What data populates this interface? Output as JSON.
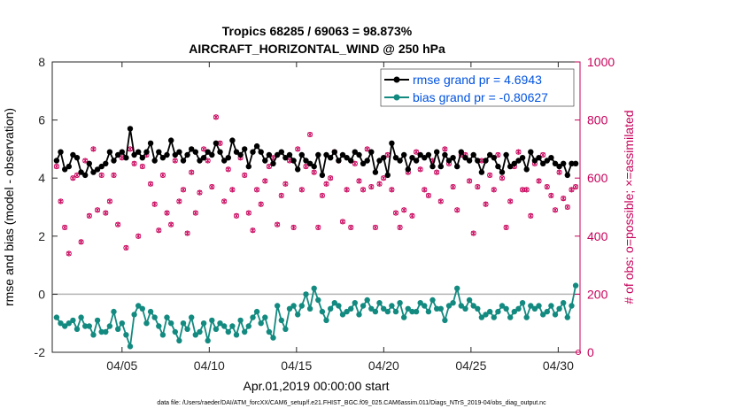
{
  "chart_data": {
    "type": "line",
    "title_line1": "Tropics 68285 / 69063 = 98.873%",
    "title_line2": "AIRCRAFT_HORIZONTAL_WIND @ 250 hPa",
    "xlabel": "Apr.01,2019 00:00:00 start",
    "ylabel_left": "rmse and bias (model - observation)",
    "ylabel_right": "# of obs: o=possible; ×=assimilated",
    "footnote": "data file: /Users/raeder/DAI/ATM_forcXX/CAM6_setup/f.e21.FHIST_BGC.f09_025.CAM6assim.011/Diags_NTrS_2019-04/obs_diag_output.nc",
    "x_range": [
      1,
      31.25
    ],
    "ylim_left": [
      -2,
      8
    ],
    "ylim_right": [
      0,
      1000
    ],
    "x_ticks": [
      5,
      10,
      15,
      20,
      25,
      30
    ],
    "x_tick_labels": [
      "04/05",
      "04/10",
      "04/15",
      "04/20",
      "04/25",
      "04/30"
    ],
    "y_left_ticks": [
      "8",
      "6",
      "4",
      "2",
      "0",
      "-2"
    ],
    "y_right_ticks": [
      "1000",
      "800",
      "600",
      "400",
      "200",
      "0"
    ],
    "colors": {
      "rmse": "#000000",
      "bias": "#138a80",
      "obs": "#c8005a",
      "zero_line": "#b4b4b4",
      "legend_text": "#0052e0"
    },
    "series": [
      {
        "name": "rmse grand pr = 4.6943",
        "axis": "left",
        "values": [
          4.6,
          4.9,
          4.3,
          4.4,
          4.8,
          4.7,
          4.2,
          4.1,
          4.5,
          4.2,
          4.3,
          4.4,
          4.5,
          4.9,
          4.6,
          4.8,
          4.9,
          4.7,
          5.7,
          4.8,
          4.9,
          4.7,
          4.9,
          5.2,
          4.6,
          4.9,
          4.7,
          4.8,
          5.3,
          4.8,
          4.9,
          4.6,
          4.8,
          5.0,
          4.9,
          4.6,
          4.7,
          4.9,
          4.8,
          5.2,
          4.9,
          4.6,
          4.7,
          5.3,
          4.9,
          4.8,
          5.0,
          4.4,
          4.9,
          5.1,
          4.9,
          4.6,
          4.8,
          4.5,
          4.8,
          4.9,
          4.7,
          4.8,
          4.6,
          4.3,
          4.8,
          4.6,
          4.5,
          4.4,
          4.8,
          4.1,
          4.8,
          4.7,
          4.9,
          4.6,
          4.8,
          4.7,
          4.6,
          4.9,
          4.8,
          4.5,
          4.6,
          4.9,
          4.2,
          4.6,
          4.7,
          4.1,
          5.2,
          4.7,
          4.6,
          4.8,
          4.3,
          4.7,
          4.6,
          4.8,
          4.7,
          4.8,
          4.4,
          4.9,
          4.4,
          4.8,
          4.6,
          4.7,
          4.4,
          4.9,
          4.7,
          4.6,
          4.8,
          4.6,
          4.2,
          4.6,
          4.8,
          4.7,
          4.4,
          4.2,
          4.8,
          4.4,
          4.5,
          4.6,
          4.7,
          4.3,
          4.9,
          4.6,
          4.7,
          4.5,
          4.6,
          4.7,
          4.5,
          4.4,
          4.5,
          4.1,
          4.5,
          4.5
        ]
      },
      {
        "name": "bias grand pr = -0.80627",
        "axis": "left",
        "values": [
          -0.8,
          -1.0,
          -1.1,
          -1.0,
          -0.9,
          -1.2,
          -0.8,
          -1.1,
          -1.1,
          -1.4,
          -0.9,
          -1.3,
          -1.3,
          -1.1,
          -0.6,
          -1.2,
          -1.0,
          -1.4,
          -1.8,
          -0.7,
          -0.4,
          -0.5,
          -1.0,
          -0.6,
          -0.8,
          -1.1,
          -1.4,
          -0.8,
          -1.0,
          -1.3,
          -1.6,
          -1.0,
          -1.2,
          -0.8,
          -1.4,
          -1.3,
          -1.0,
          -1.6,
          -0.9,
          -1.2,
          -1.0,
          -1.1,
          -1.3,
          -1.1,
          -1.4,
          -0.9,
          -1.3,
          -1.1,
          -0.8,
          -0.6,
          -1.0,
          -0.8,
          -1.3,
          -1.5,
          -0.4,
          -0.9,
          -1.2,
          -0.5,
          -0.4,
          -0.7,
          -0.4,
          0.0,
          -0.5,
          0.2,
          -0.2,
          -0.6,
          -0.9,
          -0.5,
          -0.3,
          -0.4,
          -0.7,
          -0.6,
          -0.5,
          -0.3,
          -0.7,
          -0.4,
          -0.2,
          -0.5,
          -0.6,
          -0.3,
          -0.5,
          -0.6,
          -0.4,
          -0.6,
          -0.3,
          -0.8,
          -0.5,
          -0.6,
          -0.6,
          -0.3,
          -0.4,
          -0.6,
          -0.2,
          -0.5,
          -0.5,
          -0.9,
          -0.4,
          -0.3,
          0.2,
          -0.4,
          -0.5,
          -0.2,
          -0.4,
          -0.5,
          -0.8,
          -0.7,
          -0.6,
          -0.8,
          -0.6,
          -0.4,
          -0.5,
          -0.8,
          -0.6,
          -0.5,
          -0.3,
          -0.8,
          -0.4,
          -0.5,
          -0.4,
          -0.7,
          -0.6,
          -0.4,
          -0.7,
          -0.5,
          -0.3,
          -0.8,
          -0.4,
          0.3
        ]
      }
    ],
    "obs_counts": {
      "axis": "right",
      "description": "possible (o) and assimilated (×) observation counts",
      "values": [
        640,
        520,
        430,
        340,
        600,
        610,
        380,
        660,
        470,
        700,
        490,
        610,
        480,
        520,
        610,
        440,
        670,
        360,
        700,
        650,
        400,
        640,
        680,
        580,
        510,
        420,
        610,
        480,
        440,
        660,
        520,
        560,
        410,
        620,
        480,
        550,
        700,
        660,
        570,
        810,
        720,
        520,
        630,
        560,
        470,
        670,
        610,
        480,
        420,
        560,
        510,
        590,
        640,
        670,
        440,
        540,
        580,
        660,
        430,
        700,
        560,
        640,
        750,
        620,
        430,
        540,
        580,
        600,
        690,
        660,
        450,
        560,
        430,
        650,
        590,
        560,
        700,
        570,
        430,
        580,
        600,
        680,
        560,
        480,
        430,
        490,
        620,
        470,
        690,
        630,
        560,
        540,
        660,
        620,
        520,
        700,
        650,
        570,
        490,
        680,
        680,
        590,
        410,
        570,
        660,
        510,
        610,
        560,
        680,
        600,
        430,
        520,
        640,
        690,
        560,
        560,
        470,
        650,
        590,
        680,
        570,
        540,
        490,
        620,
        530,
        500,
        560,
        570
      ]
    }
  },
  "legend": {
    "rmse_label": "rmse grand pr = 4.6943",
    "bias_label": "bias grand pr = -0.80627"
  }
}
